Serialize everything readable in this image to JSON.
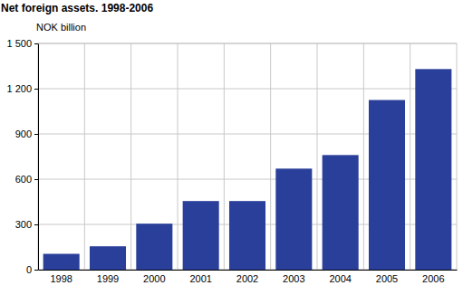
{
  "chart_data": {
    "type": "bar",
    "title": "Net foreign assets. 1998-2006",
    "y_label": "NOK billion",
    "categories": [
      "1998",
      "1999",
      "2000",
      "2001",
      "2002",
      "2003",
      "2004",
      "2005",
      "2006"
    ],
    "values": [
      105,
      155,
      305,
      455,
      455,
      670,
      760,
      1125,
      1330
    ],
    "color": "#2a3f9a",
    "ylim": [
      0,
      1500
    ],
    "yticks": [
      0,
      300,
      600,
      900,
      {
        "value": 1200,
        "label": "1 200"
      },
      {
        "value": 1500,
        "label": "1 500"
      }
    ],
    "grid": true
  }
}
